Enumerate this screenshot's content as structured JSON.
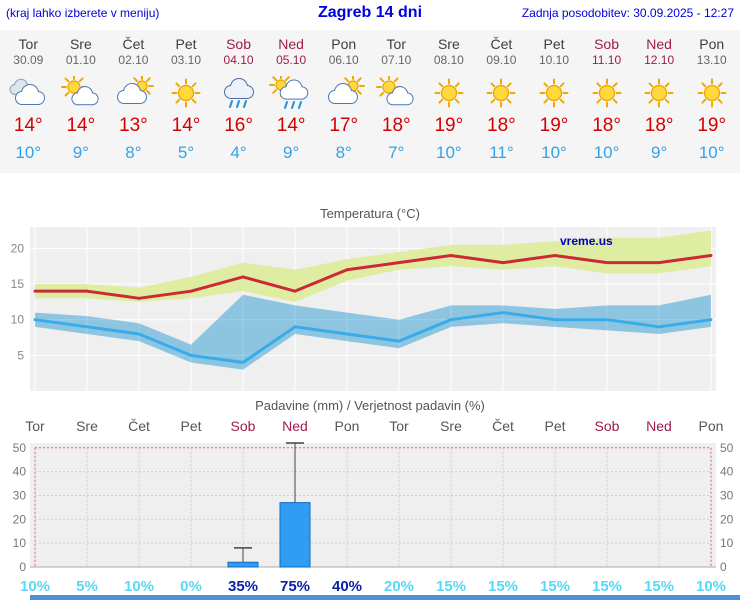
{
  "header": {
    "note": "(kraj lahko izberete v meniju)",
    "title": "Zagreb 14 dni",
    "updated": "Zadnja posodobitev: 30.09.2025 - 12:27"
  },
  "colors": {
    "link_blue": "#0000dd",
    "temp_max_red": "#d40000",
    "temp_min_blue": "#33a3e8",
    "weekend_red": "#a01a50",
    "weekday_gray": "#3f3f3f",
    "date_gray": "#666666",
    "prob_low_cyan": "#58d8f8",
    "prob_high_navy": "#0b22a6",
    "bar_blue": "#2e9df3",
    "panel_gray": "#efefef",
    "footer_blue": "#4d90d8"
  },
  "days": [
    {
      "name": "Tor",
      "date": "30.09",
      "weekend": false,
      "icon": "cloudy",
      "tmax": "14°",
      "tmin": "10°"
    },
    {
      "name": "Sre",
      "date": "01.10",
      "weekend": false,
      "icon": "partly-sunny",
      "tmax": "14°",
      "tmin": "9°"
    },
    {
      "name": "Čet",
      "date": "02.10",
      "weekend": false,
      "icon": "mostly-cloudy",
      "tmax": "13°",
      "tmin": "8°"
    },
    {
      "name": "Pet",
      "date": "03.10",
      "weekend": false,
      "icon": "sunny",
      "tmax": "14°",
      "tmin": "5°"
    },
    {
      "name": "Sob",
      "date": "04.10",
      "weekend": true,
      "icon": "rain",
      "tmax": "16°",
      "tmin": "4°"
    },
    {
      "name": "Ned",
      "date": "05.10",
      "weekend": true,
      "icon": "rain-showers",
      "tmax": "14°",
      "tmin": "9°"
    },
    {
      "name": "Pon",
      "date": "06.10",
      "weekend": false,
      "icon": "mostly-cloudy",
      "tmax": "17°",
      "tmin": "8°"
    },
    {
      "name": "Tor",
      "date": "07.10",
      "weekend": false,
      "icon": "partly-sunny",
      "tmax": "18°",
      "tmin": "7°"
    },
    {
      "name": "Sre",
      "date": "08.10",
      "weekend": false,
      "icon": "sunny",
      "tmax": "19°",
      "tmin": "10°"
    },
    {
      "name": "Čet",
      "date": "09.10",
      "weekend": false,
      "icon": "sunny",
      "tmax": "18°",
      "tmin": "11°"
    },
    {
      "name": "Pet",
      "date": "10.10",
      "weekend": false,
      "icon": "sunny",
      "tmax": "19°",
      "tmin": "10°"
    },
    {
      "name": "Sob",
      "date": "11.10",
      "weekend": true,
      "icon": "sunny",
      "tmax": "18°",
      "tmin": "10°"
    },
    {
      "name": "Ned",
      "date": "12.10",
      "weekend": true,
      "icon": "sunny",
      "tmax": "18°",
      "tmin": "9°"
    },
    {
      "name": "Pon",
      "date": "13.10",
      "weekend": false,
      "icon": "sunny",
      "tmax": "19°",
      "tmin": "10°"
    }
  ],
  "chart_data": [
    {
      "type": "line",
      "title": "Temperatura (°C)",
      "watermark": "vreme.us",
      "x_labels": [
        "Tor",
        "Sre",
        "Čet",
        "Pet",
        "Sob",
        "Ned",
        "Pon",
        "Tor",
        "Sre",
        "Čet",
        "Pet",
        "Sob",
        "Ned",
        "Pon"
      ],
      "ylim": [
        0,
        23
      ],
      "yticks": [
        5,
        10,
        15,
        20
      ],
      "grid": true,
      "legend": "none",
      "series": [
        {
          "name": "max-temp",
          "color": "#cc2936",
          "values": [
            14,
            14,
            13,
            14,
            16,
            14,
            17,
            18,
            19,
            18,
            19,
            18,
            18,
            19
          ]
        },
        {
          "name": "min-temp",
          "color": "#3aabea",
          "values": [
            10,
            9,
            8,
            5,
            4,
            9,
            8,
            7,
            10,
            11,
            10,
            10,
            9,
            10
          ]
        }
      ],
      "bands": [
        {
          "name": "max-temp-range",
          "color": "#dfeda2",
          "upper": [
            15,
            15,
            14.5,
            16,
            18,
            17,
            18.5,
            19.5,
            20.5,
            20.5,
            21,
            21.5,
            21.5,
            22.5
          ],
          "lower": [
            13,
            13,
            12.5,
            13,
            14,
            12.5,
            15.5,
            17,
            17.5,
            17,
            17.5,
            16.5,
            16.5,
            17.5
          ]
        },
        {
          "name": "min-temp-range",
          "color": "#84cbec",
          "upper": [
            11,
            10.5,
            9.5,
            6.5,
            13.5,
            12,
            11,
            10,
            12,
            12,
            11.5,
            12,
            12,
            13.5
          ],
          "lower": [
            9,
            8,
            7,
            4,
            3,
            8,
            7,
            6,
            9,
            9.5,
            9,
            8.5,
            8,
            9
          ]
        }
      ]
    },
    {
      "type": "bar",
      "title": "Padavine (mm) / Verjetnost padavin (%)",
      "categories": [
        "Tor",
        "Sre",
        "Čet",
        "Pet",
        "Sob",
        "Ned",
        "Pon",
        "Tor",
        "Sre",
        "Čet",
        "Pet",
        "Sob",
        "Ned",
        "Pon"
      ],
      "weekend": [
        false,
        false,
        false,
        false,
        true,
        true,
        false,
        false,
        false,
        false,
        false,
        true,
        true,
        false
      ],
      "values": [
        0,
        0,
        0,
        0,
        2,
        27,
        0,
        0,
        0,
        0,
        0,
        0,
        0,
        0
      ],
      "whisker_max": [
        0,
        0,
        0,
        0,
        8,
        52,
        0,
        0,
        0,
        0,
        0,
        0,
        0,
        0
      ],
      "probabilities": [
        "10%",
        "5%",
        "10%",
        "0%",
        "35%",
        "75%",
        "40%",
        "20%",
        "15%",
        "15%",
        "15%",
        "15%",
        "15%",
        "10%"
      ],
      "prob_emphasis": [
        false,
        false,
        false,
        false,
        true,
        true,
        true,
        false,
        false,
        false,
        false,
        false,
        false,
        false
      ],
      "ylim": [
        0,
        52
      ],
      "yticks": [
        0,
        10,
        20,
        30,
        40,
        50
      ]
    }
  ]
}
